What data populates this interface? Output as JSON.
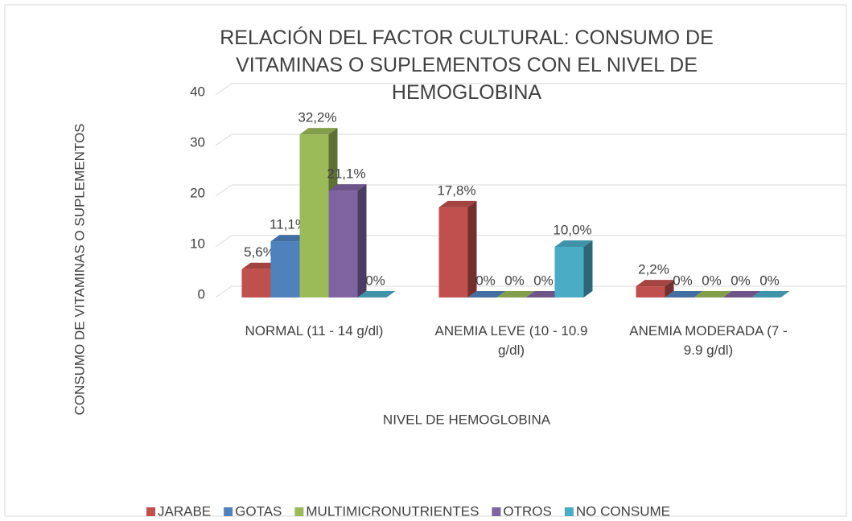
{
  "chart_data": {
    "type": "bar3d",
    "title": "RELACIÓN DEL FACTOR CULTURAL: CONSUMO DE VITAMINAS O SUPLEMENTOS CON EL NIVEL DE HEMOGLOBINA",
    "x_label": "NIVEL DE HEMOGLOBINA",
    "y_label": "CONSUMO DE VITAMINAS O SUPLEMENTOS",
    "categories": [
      "NORMAL (11 - 14 g/dl)",
      "ANEMIA LEVE (10 - 10.9 g/dl)",
      "ANEMIA MODERADA (7 - 9.9 g/dl)"
    ],
    "series": [
      {
        "name": "JARABE",
        "color": "#c0504d",
        "values": [
          5.6,
          17.8,
          2.2
        ],
        "value_labels": [
          "5,6%",
          "17,8%",
          "2,2%"
        ]
      },
      {
        "name": "GOTAS",
        "color": "#4f81bd",
        "values": [
          11.1,
          0,
          0
        ],
        "value_labels": [
          "11,1%",
          "0%",
          "0%"
        ]
      },
      {
        "name": "MULTIMICRONUTRIENTES",
        "color": "#9bbb59",
        "values": [
          32.2,
          0,
          0
        ],
        "value_labels": [
          "32,2%",
          "0%",
          "0%"
        ]
      },
      {
        "name": "OTROS",
        "color": "#8064a2",
        "values": [
          21.1,
          0,
          0
        ],
        "value_labels": [
          "21,1%",
          "0%",
          "0%"
        ]
      },
      {
        "name": "NO CONSUME",
        "color": "#4bacc6",
        "values": [
          0,
          10.0,
          0
        ],
        "value_labels": [
          "0%",
          "10,0%",
          "0%"
        ]
      }
    ],
    "ylim": [
      0,
      40
    ],
    "yticks": [
      0,
      10,
      20,
      30,
      40
    ],
    "grid": true,
    "legend": "bottom"
  }
}
